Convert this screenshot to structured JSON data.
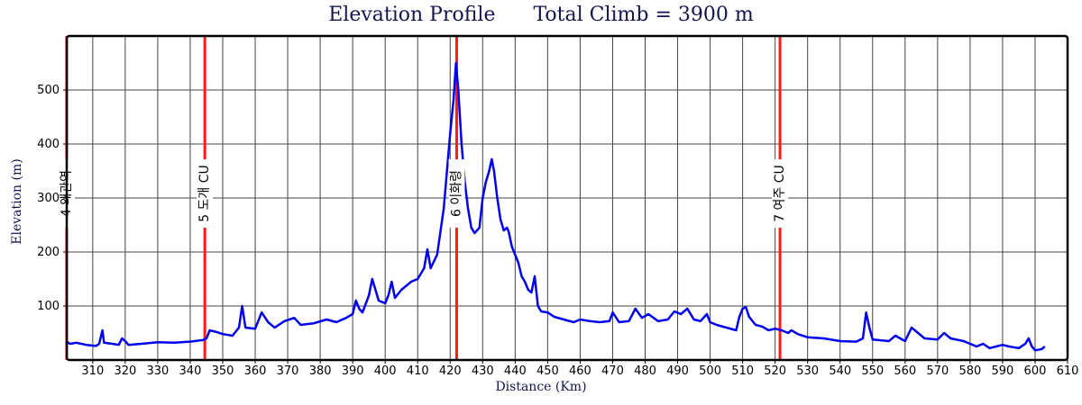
{
  "chart_data": {
    "type": "line",
    "title": "Elevation Profile",
    "subtitle": "Total Climb = 3900 m",
    "xlabel": "Distance (Km)",
    "ylabel": "Elevation (m)",
    "xlim": [
      302,
      610
    ],
    "ylim": [
      0,
      600
    ],
    "x_ticks": [
      310,
      320,
      330,
      340,
      350,
      360,
      370,
      380,
      390,
      400,
      410,
      420,
      430,
      440,
      450,
      460,
      470,
      480,
      490,
      500,
      510,
      520,
      530,
      540,
      550,
      560,
      570,
      580,
      590,
      600,
      610
    ],
    "y_ticks": [
      100,
      200,
      300,
      400,
      500
    ],
    "grid": true,
    "series": [
      {
        "color": "#0000ee",
        "points": [
          [
            302,
            34
          ],
          [
            303,
            30
          ],
          [
            305,
            32
          ],
          [
            308,
            28
          ],
          [
            311,
            26
          ],
          [
            312,
            30
          ],
          [
            313,
            55
          ],
          [
            313.5,
            32
          ],
          [
            316,
            30
          ],
          [
            318,
            28
          ],
          [
            319,
            40
          ],
          [
            320,
            35
          ],
          [
            321,
            28
          ],
          [
            325,
            30
          ],
          [
            330,
            33
          ],
          [
            335,
            32
          ],
          [
            340,
            34
          ],
          [
            344,
            37
          ],
          [
            345,
            40
          ],
          [
            346,
            55
          ],
          [
            348,
            52
          ],
          [
            350,
            48
          ],
          [
            353,
            45
          ],
          [
            355,
            60
          ],
          [
            356,
            100
          ],
          [
            357,
            60
          ],
          [
            360,
            58
          ],
          [
            362,
            88
          ],
          [
            364,
            70
          ],
          [
            366,
            60
          ],
          [
            369,
            72
          ],
          [
            372,
            78
          ],
          [
            374,
            65
          ],
          [
            378,
            68
          ],
          [
            382,
            75
          ],
          [
            385,
            70
          ],
          [
            388,
            78
          ],
          [
            390,
            85
          ],
          [
            391,
            110
          ],
          [
            392,
            95
          ],
          [
            393,
            88
          ],
          [
            395,
            120
          ],
          [
            396,
            150
          ],
          [
            398,
            110
          ],
          [
            400,
            105
          ],
          [
            401,
            120
          ],
          [
            402,
            145
          ],
          [
            403,
            115
          ],
          [
            405,
            130
          ],
          [
            408,
            145
          ],
          [
            410,
            150
          ],
          [
            412,
            170
          ],
          [
            413,
            205
          ],
          [
            414,
            170
          ],
          [
            416,
            195
          ],
          [
            418,
            280
          ],
          [
            420,
            420
          ],
          [
            421,
            480
          ],
          [
            421.8,
            550
          ],
          [
            422.5,
            500
          ],
          [
            423.5,
            400
          ],
          [
            424.5,
            330
          ],
          [
            425.5,
            280
          ],
          [
            426.5,
            245
          ],
          [
            427.5,
            235
          ],
          [
            429,
            245
          ],
          [
            430,
            300
          ],
          [
            431,
            330
          ],
          [
            432,
            350
          ],
          [
            432.8,
            372
          ],
          [
            433.5,
            350
          ],
          [
            434.5,
            300
          ],
          [
            435.5,
            260
          ],
          [
            436.5,
            240
          ],
          [
            437.5,
            245
          ],
          [
            438,
            238
          ],
          [
            439,
            210
          ],
          [
            440,
            195
          ],
          [
            441,
            180
          ],
          [
            442,
            155
          ],
          [
            443,
            145
          ],
          [
            444,
            130
          ],
          [
            445,
            125
          ],
          [
            446,
            155
          ],
          [
            447,
            100
          ],
          [
            448,
            90
          ],
          [
            450,
            88
          ],
          [
            452,
            80
          ],
          [
            455,
            75
          ],
          [
            458,
            70
          ],
          [
            460,
            75
          ],
          [
            463,
            72
          ],
          [
            466,
            70
          ],
          [
            469,
            72
          ],
          [
            470,
            88
          ],
          [
            472,
            70
          ],
          [
            475,
            72
          ],
          [
            477,
            95
          ],
          [
            479,
            78
          ],
          [
            481,
            85
          ],
          [
            484,
            72
          ],
          [
            487,
            75
          ],
          [
            489,
            90
          ],
          [
            491,
            85
          ],
          [
            493,
            95
          ],
          [
            495,
            75
          ],
          [
            497,
            72
          ],
          [
            499,
            85
          ],
          [
            500,
            70
          ],
          [
            502,
            65
          ],
          [
            505,
            60
          ],
          [
            508,
            55
          ],
          [
            509,
            80
          ],
          [
            510,
            95
          ],
          [
            511,
            98
          ],
          [
            512,
            80
          ],
          [
            514,
            65
          ],
          [
            516,
            62
          ],
          [
            518,
            55
          ],
          [
            520,
            58
          ],
          [
            522,
            55
          ],
          [
            524,
            50
          ],
          [
            525,
            55
          ],
          [
            527,
            48
          ],
          [
            530,
            42
          ],
          [
            535,
            40
          ],
          [
            540,
            35
          ],
          [
            545,
            34
          ],
          [
            547,
            40
          ],
          [
            548,
            88
          ],
          [
            549,
            60
          ],
          [
            550,
            38
          ],
          [
            555,
            35
          ],
          [
            557,
            45
          ],
          [
            560,
            35
          ],
          [
            562,
            60
          ],
          [
            564,
            50
          ],
          [
            566,
            40
          ],
          [
            570,
            38
          ],
          [
            572,
            50
          ],
          [
            574,
            40
          ],
          [
            578,
            35
          ],
          [
            580,
            30
          ],
          [
            582,
            25
          ],
          [
            584,
            30
          ],
          [
            586,
            22
          ],
          [
            588,
            25
          ],
          [
            590,
            28
          ],
          [
            592,
            25
          ],
          [
            595,
            22
          ],
          [
            597,
            30
          ],
          [
            598,
            40
          ],
          [
            599,
            25
          ],
          [
            600,
            18
          ],
          [
            602,
            20
          ],
          [
            603,
            25
          ]
        ]
      }
    ],
    "markers": [
      {
        "x": 302,
        "label": "4 왜관역"
      },
      {
        "x": 344.5,
        "label": "5 도개 CU"
      },
      {
        "x": 422,
        "label": "6 이화령"
      },
      {
        "x": 521.5,
        "label": "7 여주 CU"
      }
    ]
  }
}
